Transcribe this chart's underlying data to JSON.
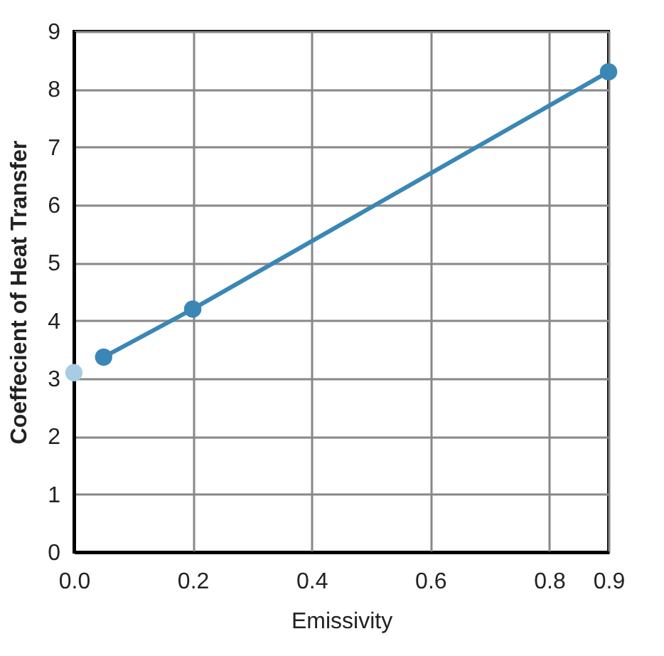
{
  "chart_data": {
    "type": "line",
    "xlabel": "Emissivity",
    "ylabel": "Coeffecient of Heat Transfer",
    "xlim": [
      0,
      0.9
    ],
    "ylim": [
      0,
      9
    ],
    "xticks": [
      {
        "value": 0,
        "label": "0.0"
      },
      {
        "value": 0.2,
        "label": "0.2"
      },
      {
        "value": 0.4,
        "label": "0.4"
      },
      {
        "value": 0.6,
        "label": "0.6"
      },
      {
        "value": 0.8,
        "label": "0.8"
      },
      {
        "value": 0.9,
        "label": "0.9"
      }
    ],
    "yticks": [
      0,
      1,
      2,
      3,
      4,
      5,
      6,
      7,
      8,
      9
    ],
    "grid": true,
    "marker": "circle",
    "line_style": "solid",
    "series": [
      {
        "color": "#3a87b5",
        "x": [
          0.05,
          0.2,
          0.9
        ],
        "values": [
          3.37,
          4.2,
          8.3
        ]
      },
      {
        "type": "scatter",
        "color": "#a8cde2",
        "x": [
          0
        ],
        "values": [
          3.1
        ]
      }
    ]
  }
}
